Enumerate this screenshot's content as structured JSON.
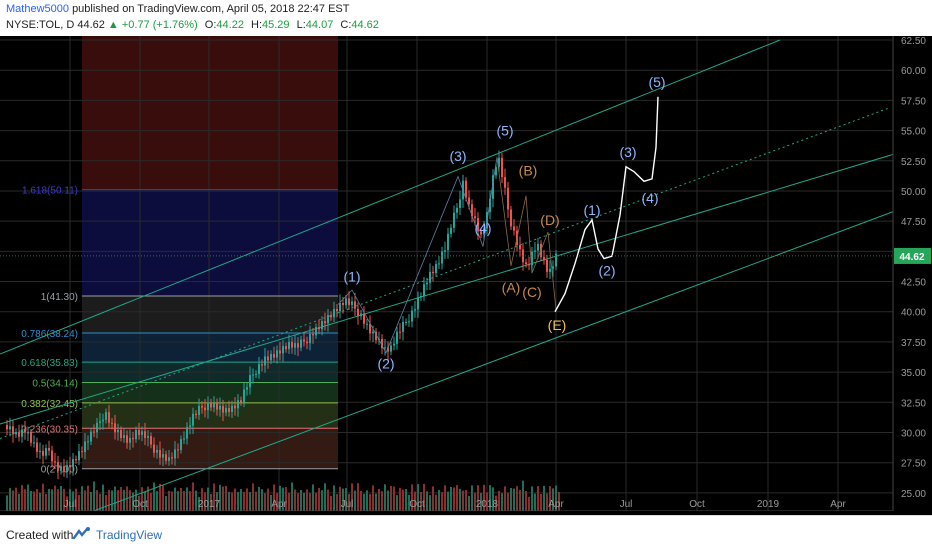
{
  "header": {
    "author": "Mathew5000",
    "published_text": "published on TradingView.com, April 05, 2018 22:47 EST",
    "symbol": "NYSE:TOL, D",
    "last": "44.62",
    "change": "+0.77 (+1.76%)",
    "open_label": "O:",
    "open": "44.22",
    "high_label": "H:",
    "high": "45.29",
    "low_label": "L:",
    "low": "44.07",
    "close_label": "C:",
    "close": "44.62"
  },
  "footer": {
    "created_with": "Created with",
    "brand": "TradingView"
  },
  "colors": {
    "background": "#000000",
    "up_candle": "#26a69a",
    "down_candle": "#ef5350",
    "channel": "#1fa88a",
    "wave_blue": "#8fb6ff",
    "wave_orange": "#c98a4e",
    "price_badge": "#26a65b",
    "projection": "#ffffff"
  },
  "chart_data": {
    "type": "candlestick",
    "symbol": "NYSE:TOL",
    "interval": "D",
    "ylim": [
      23.5,
      62.5
    ],
    "y_ticks": [
      "25.00",
      "27.50",
      "30.00",
      "32.50",
      "35.00",
      "37.50",
      "40.00",
      "42.50",
      "45.00",
      "47.50",
      "50.00",
      "52.50",
      "55.00",
      "57.50",
      "60.00",
      "62.50"
    ],
    "x_ticks": [
      "Jul",
      "Oct",
      "2017",
      "Apr",
      "Jul",
      "Oct",
      "2018",
      "Apr",
      "Jul",
      "Oct",
      "2019",
      "Apr"
    ],
    "last_price": "44.62",
    "price_path": [
      [
        0,
        31.0
      ],
      [
        8,
        30.5
      ],
      [
        16,
        29.8
      ],
      [
        24,
        30.2
      ],
      [
        32,
        29.0
      ],
      [
        40,
        28.0
      ],
      [
        48,
        28.5
      ],
      [
        56,
        27.2
      ],
      [
        64,
        27.0
      ],
      [
        72,
        27.6
      ],
      [
        80,
        28.4
      ],
      [
        88,
        29.5
      ],
      [
        96,
        30.4
      ],
      [
        104,
        31.8
      ],
      [
        112,
        30.5
      ],
      [
        120,
        29.8
      ],
      [
        128,
        29.2
      ],
      [
        136,
        30.0
      ],
      [
        144,
        29.6
      ],
      [
        152,
        28.8
      ],
      [
        160,
        28.2
      ],
      [
        168,
        27.8
      ],
      [
        176,
        28.6
      ],
      [
        184,
        29.8
      ],
      [
        192,
        31.2
      ],
      [
        200,
        32.0
      ],
      [
        208,
        32.5
      ],
      [
        216,
        32.2
      ],
      [
        224,
        31.8
      ],
      [
        232,
        32.0
      ],
      [
        240,
        32.6
      ],
      [
        248,
        34.2
      ],
      [
        256,
        35.4
      ],
      [
        264,
        36.2
      ],
      [
        272,
        36.4
      ],
      [
        280,
        36.8
      ],
      [
        288,
        37.2
      ],
      [
        296,
        37.0
      ],
      [
        304,
        37.6
      ],
      [
        312,
        38.4
      ],
      [
        320,
        39.0
      ],
      [
        328,
        39.6
      ],
      [
        336,
        40.2
      ],
      [
        344,
        40.8
      ],
      [
        352,
        40.4
      ],
      [
        360,
        39.8
      ],
      [
        368,
        38.6
      ],
      [
        376,
        37.8
      ],
      [
        384,
        36.8
      ],
      [
        390,
        36.9
      ],
      [
        396,
        38.0
      ],
      [
        404,
        39.0
      ],
      [
        412,
        40.2
      ],
      [
        420,
        41.6
      ],
      [
        428,
        43.0
      ],
      [
        436,
        43.8
      ],
      [
        444,
        45.2
      ],
      [
        450,
        47.0
      ],
      [
        456,
        48.6
      ],
      [
        462,
        50.8
      ],
      [
        468,
        48.8
      ],
      [
        474,
        47.6
      ],
      [
        480,
        46.2
      ],
      [
        486,
        48.0
      ],
      [
        492,
        51.0
      ],
      [
        497,
        52.8
      ],
      [
        502,
        50.8
      ],
      [
        508,
        48.0
      ],
      [
        514,
        46.4
      ],
      [
        520,
        44.8
      ],
      [
        526,
        43.6
      ],
      [
        530,
        44.6
      ],
      [
        536,
        45.6
      ],
      [
        542,
        44.2
      ],
      [
        548,
        43.0
      ],
      [
        552,
        43.8
      ],
      [
        556,
        44.62
      ]
    ],
    "volume_profile": [
      0.5,
      0.62,
      0.48,
      0.55,
      0.7,
      0.52,
      0.45,
      0.6,
      0.65,
      0.58,
      0.5,
      0.75,
      0.55,
      0.62,
      0.8,
      0.5,
      0.45,
      0.7,
      0.58,
      0.66
    ],
    "channel_lines": [
      {
        "from": [
          0,
          36.5
        ],
        "to": [
          780,
          62.5
        ]
      },
      {
        "from": [
          0,
          30.7
        ],
        "to": [
          900,
          53.2
        ]
      },
      {
        "from": [
          0,
          20.6
        ],
        "to": [
          900,
          48.5
        ]
      }
    ],
    "fibonacci": [
      {
        "label": "1.618(50.11)",
        "value": 50.11,
        "color": "#3b3bd6"
      },
      {
        "label": "1(41.30)",
        "value": 41.3,
        "color": "#9aa0a6"
      },
      {
        "label": "0.786(38.24)",
        "value": 38.24,
        "color": "#2f8fd1"
      },
      {
        "label": "0.618(35.83)",
        "value": 35.83,
        "color": "#1fa88a"
      },
      {
        "label": "0.5(34.14)",
        "value": 34.14,
        "color": "#4caf50"
      },
      {
        "label": "0.382(32.45)",
        "value": 32.45,
        "color": "#8bc34a"
      },
      {
        "label": "0.236(30.35)",
        "value": 30.35,
        "color": "#e57373"
      },
      {
        "label": "0(27.00)",
        "value": 27.0,
        "color": "#9aa0a6"
      }
    ],
    "wave_labels": [
      {
        "text": "(1)",
        "x": 352,
        "y": 42.5,
        "color": "blue"
      },
      {
        "text": "(2)",
        "x": 386,
        "y": 35.3,
        "color": "blue"
      },
      {
        "text": "(3)",
        "x": 458,
        "y": 52.5,
        "color": "blue"
      },
      {
        "text": "(4)",
        "x": 483,
        "y": 46.5,
        "color": "blue"
      },
      {
        "text": "(5)",
        "x": 505,
        "y": 54.6,
        "color": "blue"
      },
      {
        "text": "(B)",
        "x": 528,
        "y": 51.3,
        "color": "orange"
      },
      {
        "text": "(D)",
        "x": 550,
        "y": 47.2,
        "color": "orange"
      },
      {
        "text": "(A)",
        "x": 511,
        "y": 41.6,
        "color": "orange"
      },
      {
        "text": "(C)",
        "x": 532,
        "y": 41.2,
        "color": "orange"
      },
      {
        "text": "(E)",
        "x": 557,
        "y": 38.5,
        "color": "yellow"
      },
      {
        "text": "(1)",
        "x": 592,
        "y": 48.0,
        "color": "blue"
      },
      {
        "text": "(2)",
        "x": 607,
        "y": 43.0,
        "color": "blue"
      },
      {
        "text": "(3)",
        "x": 628,
        "y": 52.8,
        "color": "blue"
      },
      {
        "text": "(4)",
        "x": 650,
        "y": 49.0,
        "color": "blue"
      },
      {
        "text": "(5)",
        "x": 657,
        "y": 58.6,
        "color": "blue"
      }
    ],
    "projection_path": [
      [
        555,
        40.0
      ],
      [
        565,
        41.5
      ],
      [
        575,
        44.0
      ],
      [
        585,
        46.8
      ],
      [
        592,
        47.6
      ],
      [
        598,
        45.2
      ],
      [
        604,
        44.4
      ],
      [
        612,
        44.6
      ],
      [
        620,
        48.0
      ],
      [
        626,
        52.0
      ],
      [
        634,
        51.6
      ],
      [
        644,
        50.8
      ],
      [
        652,
        51.0
      ],
      [
        656,
        53.6
      ],
      [
        658,
        57.8
      ]
    ]
  }
}
